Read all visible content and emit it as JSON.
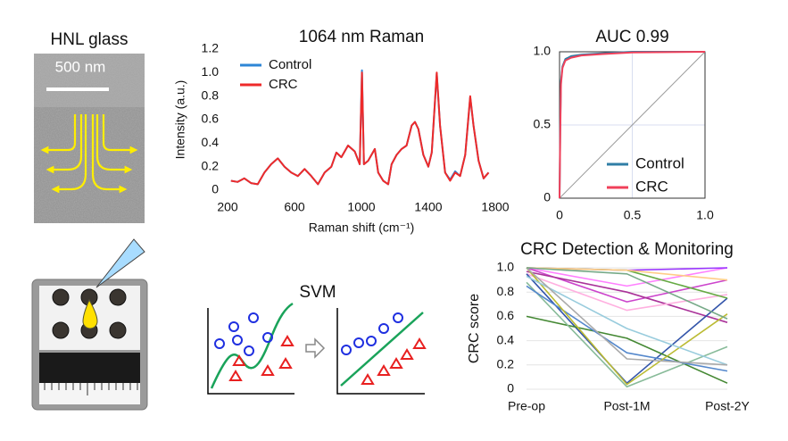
{
  "panels": {
    "hnl_title": "HNL glass",
    "scale_bar": "500 nm",
    "svm_title": "SVM"
  },
  "chart_data": [
    {
      "type": "line",
      "title": "1064 nm Raman",
      "x_label": "Raman shift (cm⁻¹)",
      "y_label": "Intensity (a.u.)",
      "x": [
        220,
        260,
        300,
        340,
        380,
        420,
        460,
        500,
        540,
        580,
        620,
        660,
        700,
        740,
        780,
        820,
        850,
        880,
        920,
        960,
        990,
        1003,
        1015,
        1040,
        1080,
        1100,
        1130,
        1160,
        1180,
        1210,
        1240,
        1270,
        1300,
        1320,
        1340,
        1370,
        1400,
        1420,
        1450,
        1470,
        1500,
        1530,
        1560,
        1590,
        1620,
        1650,
        1670,
        1700,
        1730,
        1760
      ],
      "series": [
        {
          "name": "Control",
          "color": "#2e86d6",
          "values": [
            0.08,
            0.07,
            0.1,
            0.06,
            0.05,
            0.15,
            0.22,
            0.27,
            0.2,
            0.15,
            0.12,
            0.18,
            0.12,
            0.05,
            0.15,
            0.2,
            0.32,
            0.28,
            0.38,
            0.33,
            0.22,
            1.02,
            0.22,
            0.25,
            0.35,
            0.15,
            0.08,
            0.05,
            0.22,
            0.3,
            0.35,
            0.38,
            0.55,
            0.58,
            0.52,
            0.3,
            0.2,
            0.32,
            0.99,
            0.55,
            0.15,
            0.09,
            0.16,
            0.12,
            0.3,
            0.79,
            0.55,
            0.25,
            0.1,
            0.15
          ]
        },
        {
          "name": "CRC",
          "color": "#ee2a2a",
          "values": [
            0.08,
            0.07,
            0.1,
            0.06,
            0.05,
            0.15,
            0.22,
            0.27,
            0.2,
            0.15,
            0.12,
            0.18,
            0.12,
            0.05,
            0.15,
            0.2,
            0.32,
            0.28,
            0.38,
            0.33,
            0.22,
            1.0,
            0.22,
            0.25,
            0.35,
            0.15,
            0.08,
            0.05,
            0.22,
            0.3,
            0.35,
            0.38,
            0.55,
            0.58,
            0.52,
            0.3,
            0.2,
            0.32,
            1.0,
            0.55,
            0.15,
            0.08,
            0.15,
            0.12,
            0.3,
            0.8,
            0.55,
            0.25,
            0.1,
            0.15
          ]
        }
      ],
      "xlim": [
        200,
        1800
      ],
      "xticks": [
        200,
        600,
        1000,
        1400,
        1800
      ],
      "ylim": [
        0,
        1.2
      ],
      "yticks": [
        0,
        0.2,
        0.4,
        0.6,
        0.8,
        {
          "value": 1,
          "label": "1.0"
        },
        1.2
      ],
      "grid": false,
      "legend": "upper left"
    },
    {
      "type": "line",
      "title": "AUC 0.99",
      "x": [
        0,
        0.005,
        0.01,
        0.02,
        0.04,
        0.08,
        0.15,
        0.3,
        0.5,
        1
      ],
      "series": [
        {
          "name": "Control",
          "color": "#2f7ea6",
          "values": [
            0,
            0.5,
            0.8,
            0.9,
            0.95,
            0.97,
            0.98,
            0.99,
            1,
            1
          ]
        },
        {
          "name": "CRC",
          "color": "#f0405a",
          "values": [
            0,
            0.45,
            0.78,
            0.89,
            0.94,
            0.96,
            0.975,
            0.985,
            0.995,
            1
          ]
        }
      ],
      "xlim": [
        0,
        1
      ],
      "xticks": [
        0,
        0.5,
        {
          "value": 1,
          "label": "1.0"
        }
      ],
      "ylim": [
        0,
        1
      ],
      "yticks": [
        0,
        0.5,
        {
          "value": 1,
          "label": "1.0"
        }
      ],
      "grid": true,
      "legend": "lower right",
      "diagonal": true
    },
    {
      "type": "line",
      "title": "CRC Detection & Monitoring",
      "y_label": "CRC score",
      "categories": [
        "Pre-op",
        "Post-1M",
        "Post-2Y"
      ],
      "series": [
        {
          "color": "#ff80ff",
          "values": [
            1.0,
            0.85,
            1.0
          ]
        },
        {
          "color": "#cc44cc",
          "values": [
            1.0,
            0.72,
            0.9
          ]
        },
        {
          "color": "#9933ff",
          "values": [
            1.0,
            0.98,
            1.0
          ]
        },
        {
          "color": "#aa3399",
          "values": [
            0.97,
            0.8,
            0.55
          ]
        },
        {
          "color": "#ffb0e0",
          "values": [
            0.95,
            0.65,
            0.78
          ]
        },
        {
          "color": "#3355aa",
          "values": [
            0.95,
            0.05,
            0.75
          ]
        },
        {
          "color": "#66aa44",
          "values": [
            1.0,
            0.98,
            0.75
          ]
        },
        {
          "color": "#448833",
          "values": [
            0.6,
            0.42,
            0.05
          ]
        },
        {
          "color": "#88bb99",
          "values": [
            0.88,
            0.02,
            0.35
          ]
        },
        {
          "color": "#5588cc",
          "values": [
            0.85,
            0.3,
            0.15
          ]
        },
        {
          "color": "#bbbb33",
          "values": [
            1.0,
            0.04,
            0.62
          ]
        },
        {
          "color": "#99ccdd",
          "values": [
            0.93,
            0.5,
            0.2
          ]
        },
        {
          "color": "#ffcc88",
          "values": [
            1.0,
            0.98,
            0.9
          ]
        },
        {
          "color": "#aaaaaa",
          "values": [
            1.0,
            0.25,
            0.2
          ]
        },
        {
          "color": "#77aa88",
          "values": [
            1.0,
            0.95,
            0.58
          ]
        }
      ],
      "ylim": [
        0,
        1
      ],
      "yticks": [
        0,
        0.2,
        0.4,
        0.6,
        0.8,
        {
          "value": 1,
          "label": "1.0"
        }
      ],
      "grid": true
    }
  ]
}
